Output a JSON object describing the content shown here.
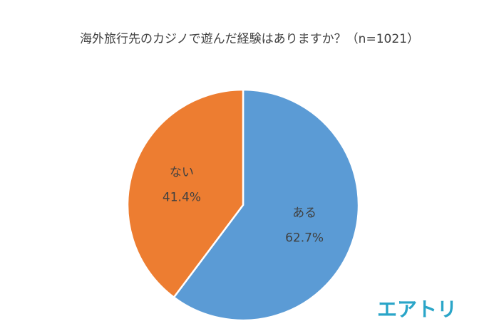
{
  "chart_data": {
    "type": "pie",
    "title": "海外旅行先のカジノで遊んだ経験はありますか？（n=1021）",
    "categories": [
      "ある",
      "ない"
    ],
    "values": [
      62.7,
      41.4
    ],
    "value_labels": [
      "62.7%",
      "41.4%"
    ],
    "colors": [
      "#5b9bd5",
      "#ed7d31"
    ],
    "logo": "エアトリ"
  }
}
